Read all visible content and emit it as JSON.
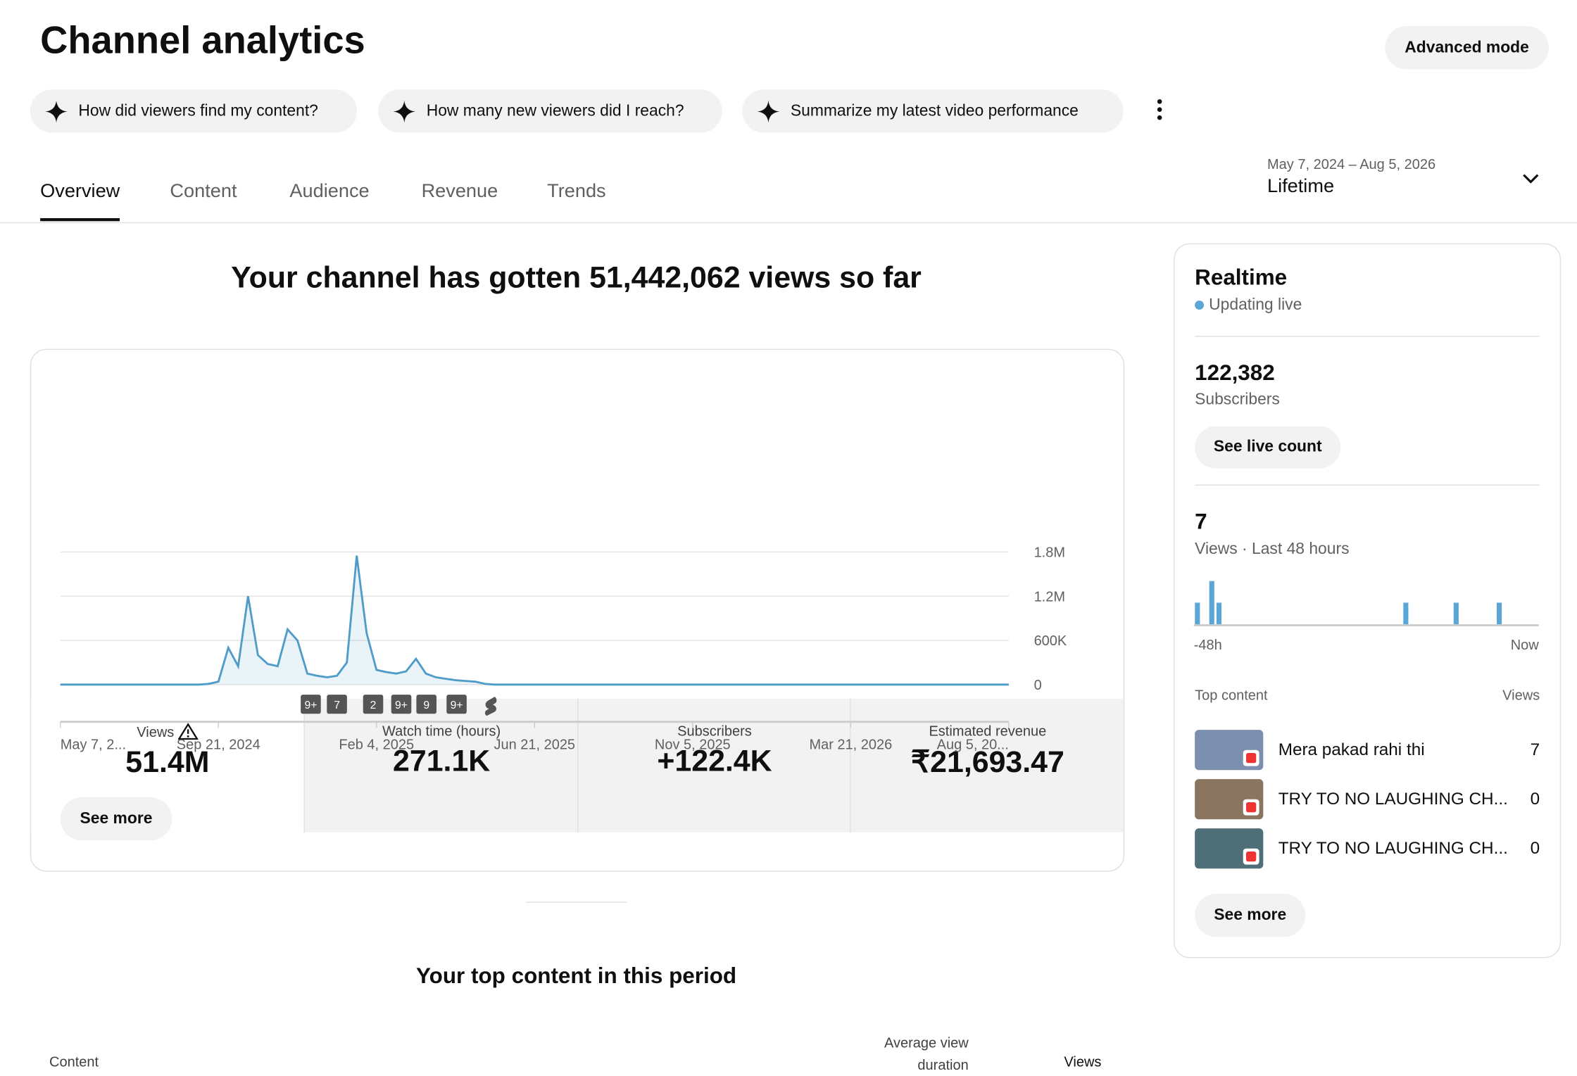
{
  "header": {
    "title": "Channel analytics",
    "advanced_button": "Advanced mode"
  },
  "chips": [
    "How did viewers find my content?",
    "How many new viewers did I reach?",
    "Summarize my latest video performance"
  ],
  "tabs": [
    "Overview",
    "Content",
    "Audience",
    "Revenue",
    "Trends"
  ],
  "date_range": {
    "dates": "May 7, 2024 – Aug 5, 2026",
    "period": "Lifetime"
  },
  "headline": "Your channel has gotten 51,442,062 views so far",
  "metrics": [
    {
      "label": "Views",
      "value": "51.4M"
    },
    {
      "label": "Watch time (hours)",
      "value": "271.1K"
    },
    {
      "label": "Subscribers",
      "value": "+122.4K"
    },
    {
      "label": "Estimated revenue",
      "value": "₹21,693.47"
    }
  ],
  "chart_data": [
    {
      "type": "line",
      "color": "#4f9cc9",
      "categories": [
        "May 7, 2...",
        null,
        null,
        null,
        null,
        null,
        null,
        null,
        null,
        null,
        null,
        null,
        null,
        null,
        null,
        null,
        "Sep 21, 2024",
        null,
        null,
        null,
        null,
        null,
        null,
        null,
        null,
        null,
        null,
        null,
        null,
        null,
        null,
        null,
        "Feb 4, 2025",
        null,
        null,
        null,
        null,
        null,
        null,
        null,
        null,
        null,
        null,
        null,
        null,
        null,
        null,
        null,
        "Jun 21, 2025",
        null,
        null,
        null,
        null,
        null,
        null,
        null,
        null,
        null,
        null,
        null,
        null,
        null,
        null,
        null,
        "Nov 5, 2025",
        null,
        null,
        null,
        null,
        null,
        null,
        null,
        null,
        null,
        null,
        null,
        null,
        null,
        null,
        null,
        "Mar 21, 2026",
        null,
        null,
        null,
        null,
        null,
        null,
        null,
        null,
        null,
        null,
        null,
        null,
        null,
        null,
        null,
        "Aug 5, 20..."
      ],
      "values": [
        0,
        0,
        0,
        0,
        0,
        0,
        0,
        0,
        0,
        0,
        0,
        0,
        0,
        0,
        0,
        10000,
        40000,
        500000,
        250000,
        1200000,
        400000,
        280000,
        250000,
        750000,
        600000,
        150000,
        120000,
        100000,
        120000,
        300000,
        1750000,
        700000,
        200000,
        170000,
        150000,
        180000,
        350000,
        150000,
        100000,
        80000,
        60000,
        50000,
        40000,
        10000,
        0,
        0,
        0,
        0,
        0,
        0,
        0,
        0,
        0,
        0,
        0,
        0,
        0,
        0,
        0,
        0,
        0,
        0,
        0,
        0,
        0,
        0,
        0,
        0,
        0,
        0,
        0,
        0,
        0,
        0,
        0,
        0,
        0,
        0,
        0,
        0,
        0,
        0,
        0,
        0,
        0,
        0,
        0,
        0,
        0,
        0,
        0,
        0,
        0,
        0,
        0,
        0,
        0
      ],
      "ylim": [
        0,
        1800000
      ],
      "yticks": [
        0,
        {
          "value": 600000,
          "label": "600K"
        },
        {
          "value": 1200000,
          "label": "1.2M"
        },
        {
          "value": 1800000,
          "label": "1.8M"
        }
      ],
      "grid": true,
      "annotations": [
        "9+",
        "7",
        "2",
        "9+",
        "9",
        "9+"
      ]
    },
    {
      "type": "bar",
      "color": "#5aa6d6",
      "categories": [
        "-48h",
        null,
        null,
        null,
        null,
        null,
        null,
        null,
        null,
        null,
        null,
        null,
        null,
        null,
        null,
        null,
        null,
        null,
        null,
        null,
        null,
        null,
        null,
        null,
        null,
        null,
        null,
        null,
        null,
        null,
        null,
        null,
        null,
        null,
        null,
        null,
        null,
        null,
        null,
        null,
        null,
        null,
        null,
        null,
        null,
        null,
        null,
        "Now"
      ],
      "values": [
        1,
        0,
        2,
        1,
        0,
        0,
        0,
        0,
        0,
        0,
        0,
        0,
        0,
        0,
        0,
        0,
        0,
        0,
        0,
        0,
        0,
        0,
        0,
        0,
        0,
        0,
        0,
        0,
        0,
        1,
        0,
        0,
        0,
        0,
        0,
        0,
        1,
        0,
        0,
        0,
        0,
        0,
        1,
        0,
        0,
        0,
        0,
        0
      ]
    }
  ],
  "see_more": "See more",
  "top_content": {
    "title": "Your top content in this period",
    "columns": [
      "Content",
      "Average view duration",
      "Views"
    ]
  },
  "realtime": {
    "title": "Realtime",
    "status": "Updating live",
    "subscribers": "122,382",
    "subscribers_label": "Subscribers",
    "live_button": "See live count",
    "views": 7,
    "views_label": "Views · Last 48 hours",
    "top_label": "Top content",
    "views_col": "Views",
    "rows": [
      {
        "title": "Mera pakad rahi thi",
        "views": 7
      },
      {
        "title": "TRY TO NO LAUGHING CH...",
        "views": 0
      },
      {
        "title": "TRY TO NO LAUGHING CH...",
        "views": 0
      }
    ],
    "see_more": "See more"
  }
}
